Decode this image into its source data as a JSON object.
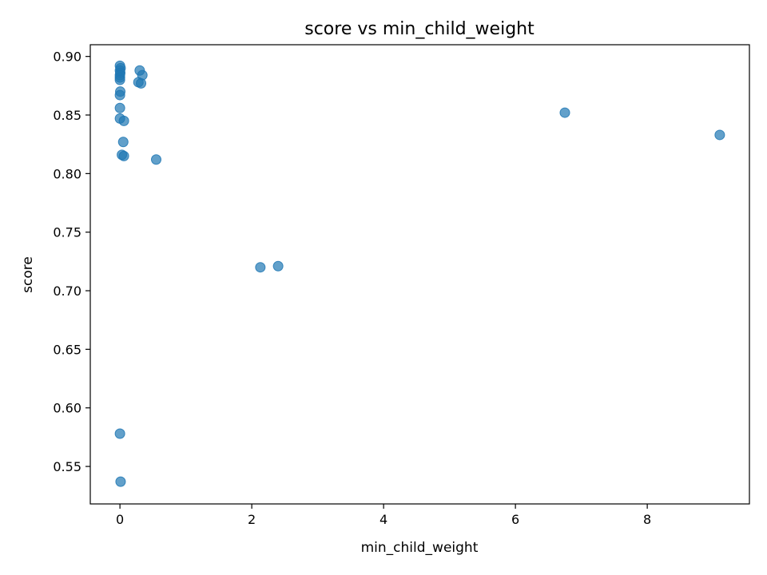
{
  "chart_data": {
    "type": "scatter",
    "title": "score vs min_child_weight",
    "xlabel": "min_child_weight",
    "ylabel": "score",
    "xlim": [
      -0.45,
      9.55
    ],
    "ylim": [
      0.518,
      0.91
    ],
    "xticks": [
      0,
      2,
      4,
      6,
      8
    ],
    "yticks": [
      0.55,
      0.6,
      0.65,
      0.7,
      0.75,
      0.8,
      0.85,
      0.9
    ],
    "xtick_labels": [
      "0",
      "2",
      "4",
      "6",
      "8"
    ],
    "ytick_labels": [
      "0.55",
      "0.60",
      "0.65",
      "0.70",
      "0.75",
      "0.80",
      "0.85",
      "0.90"
    ],
    "grid": false,
    "marker_color": "#1f77b4",
    "marker_alpha": 0.7,
    "points": [
      {
        "x": 0.0,
        "y": 0.892
      },
      {
        "x": 0.01,
        "y": 0.89
      },
      {
        "x": 0.0,
        "y": 0.888
      },
      {
        "x": 0.005,
        "y": 0.886
      },
      {
        "x": 0.0,
        "y": 0.884
      },
      {
        "x": 0.0,
        "y": 0.882
      },
      {
        "x": 0.0,
        "y": 0.88
      },
      {
        "x": 0.005,
        "y": 0.87
      },
      {
        "x": 0.0,
        "y": 0.867
      },
      {
        "x": 0.0,
        "y": 0.856
      },
      {
        "x": 0.0,
        "y": 0.847
      },
      {
        "x": 0.06,
        "y": 0.845
      },
      {
        "x": 0.05,
        "y": 0.827
      },
      {
        "x": 0.03,
        "y": 0.816
      },
      {
        "x": 0.06,
        "y": 0.815
      },
      {
        "x": 0.0,
        "y": 0.578
      },
      {
        "x": 0.01,
        "y": 0.537
      },
      {
        "x": 0.3,
        "y": 0.888
      },
      {
        "x": 0.34,
        "y": 0.884
      },
      {
        "x": 0.28,
        "y": 0.878
      },
      {
        "x": 0.32,
        "y": 0.877
      },
      {
        "x": 0.55,
        "y": 0.812
      },
      {
        "x": 2.13,
        "y": 0.72
      },
      {
        "x": 2.4,
        "y": 0.721
      },
      {
        "x": 6.75,
        "y": 0.852
      },
      {
        "x": 9.1,
        "y": 0.833
      }
    ]
  }
}
